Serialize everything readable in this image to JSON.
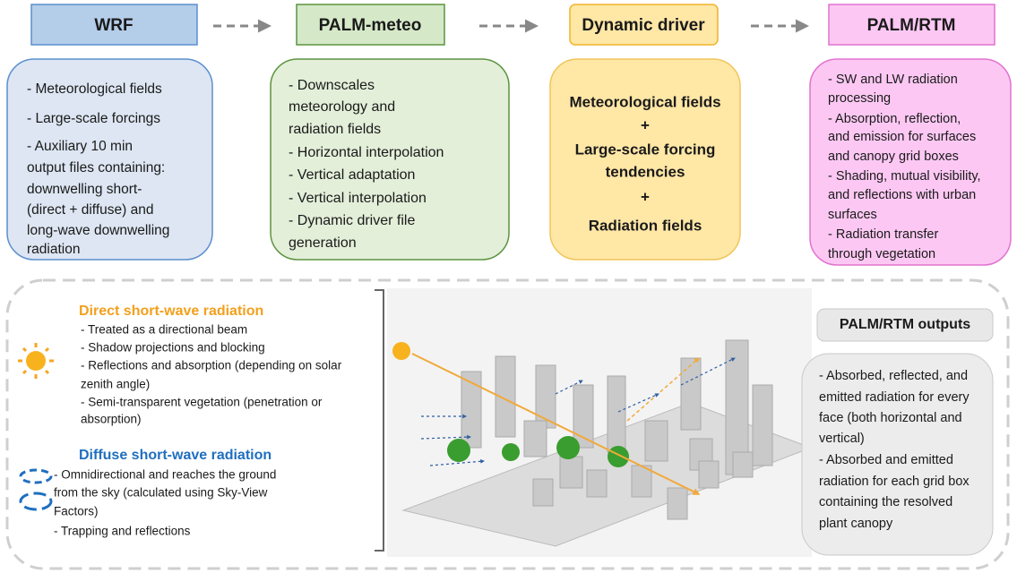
{
  "pipeline": [
    {
      "title": "WRF",
      "lines": [
        "- Meteorological fields",
        "- Large-scale forcings",
        "- Auxiliary 10 min",
        "output files containing:",
        "downwelling short-",
        "(direct + diffuse) and",
        "long-wave downwelling",
        "radiation"
      ]
    },
    {
      "title": "PALM-meteo",
      "lines": [
        "- Downscales",
        "meteorology and",
        "radiation fields",
        "- Horizontal interpolation",
        "- Vertical adaptation",
        "- Vertical interpolation",
        "- Dynamic driver file",
        "generation"
      ]
    },
    {
      "title": "Dynamic driver",
      "lines": [
        "Meteorological fields",
        "+",
        "Large-scale forcing",
        "tendencies",
        "+",
        "Radiation fields"
      ]
    },
    {
      "title": "PALM/RTM",
      "lines": [
        "- SW and LW radiation",
        "processing",
        "- Absorption, reflection,",
        "and emission for surfaces",
        "and canopy grid boxes",
        "- Shading, mutual visibility,",
        "and reflections with urban",
        "surfaces",
        "- Radiation transfer",
        "through vegetation"
      ]
    }
  ],
  "direct": {
    "title": "Direct short-wave radiation",
    "lines": [
      "- Treated as a directional beam",
      "- Shadow projections and blocking",
      "- Reflections and absorption (depending on solar",
      "zenith angle)",
      "- Semi-transparent vegetation (penetration or",
      "absorption)"
    ]
  },
  "diffuse": {
    "title": "Diffuse short-wave radiation",
    "lines": [
      "- Omnidirectional and reaches the ground",
      "from the sky (calculated using Sky-View",
      "Factors)",
      "- Trapping and reflections"
    ]
  },
  "outputs": {
    "title": "PALM/RTM outputs",
    "lines": [
      "- Absorbed, reflected, and",
      "emitted radiation for every",
      "face (both horizontal and",
      "vertical)",
      "- Absorbed and emitted",
      "radiation for each grid box",
      "containing the resolved",
      "plant canopy"
    ]
  }
}
